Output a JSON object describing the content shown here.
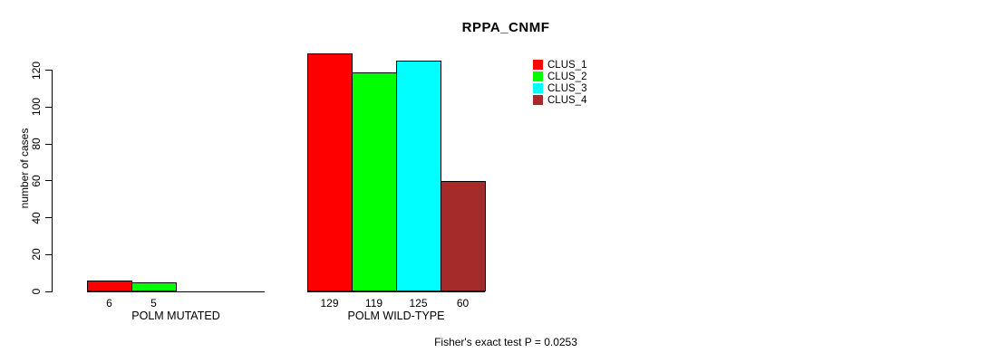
{
  "title": "RPPA_CNMF",
  "footer": "Fisher's exact test P = 0.0253",
  "legend": {
    "items": [
      {
        "label": "CLUS_1",
        "color": "#ff0000"
      },
      {
        "label": "CLUS_2",
        "color": "#00ff00"
      },
      {
        "label": "CLUS_3",
        "color": "#00ffff"
      },
      {
        "label": "CLUS_4",
        "color": "#a52a2a"
      }
    ]
  },
  "chart_data": {
    "type": "bar",
    "title": "RPPA_CNMF",
    "ylabel": "number of cases",
    "xlabel": "",
    "categories": [
      "POLM MUTATED",
      "POLM WILD-TYPE"
    ],
    "series": [
      {
        "name": "CLUS_1",
        "color": "#ff0000",
        "values": [
          6,
          129
        ]
      },
      {
        "name": "CLUS_2",
        "color": "#00ff00",
        "values": [
          5,
          119
        ]
      },
      {
        "name": "CLUS_3",
        "color": "#00ffff",
        "values": [
          0,
          125
        ]
      },
      {
        "name": "CLUS_4",
        "color": "#a52a2a",
        "values": [
          0,
          60
        ]
      }
    ],
    "bar_value_labels": [
      [
        "6",
        "5",
        "",
        ""
      ],
      [
        "129",
        "119",
        "125",
        "60"
      ]
    ],
    "yticks": [
      0,
      20,
      40,
      60,
      80,
      100,
      120
    ],
    "ylim": [
      0,
      130
    ],
    "grid": false,
    "legend_position": "top-right",
    "annotation": "Fisher's exact test P = 0.0253"
  }
}
